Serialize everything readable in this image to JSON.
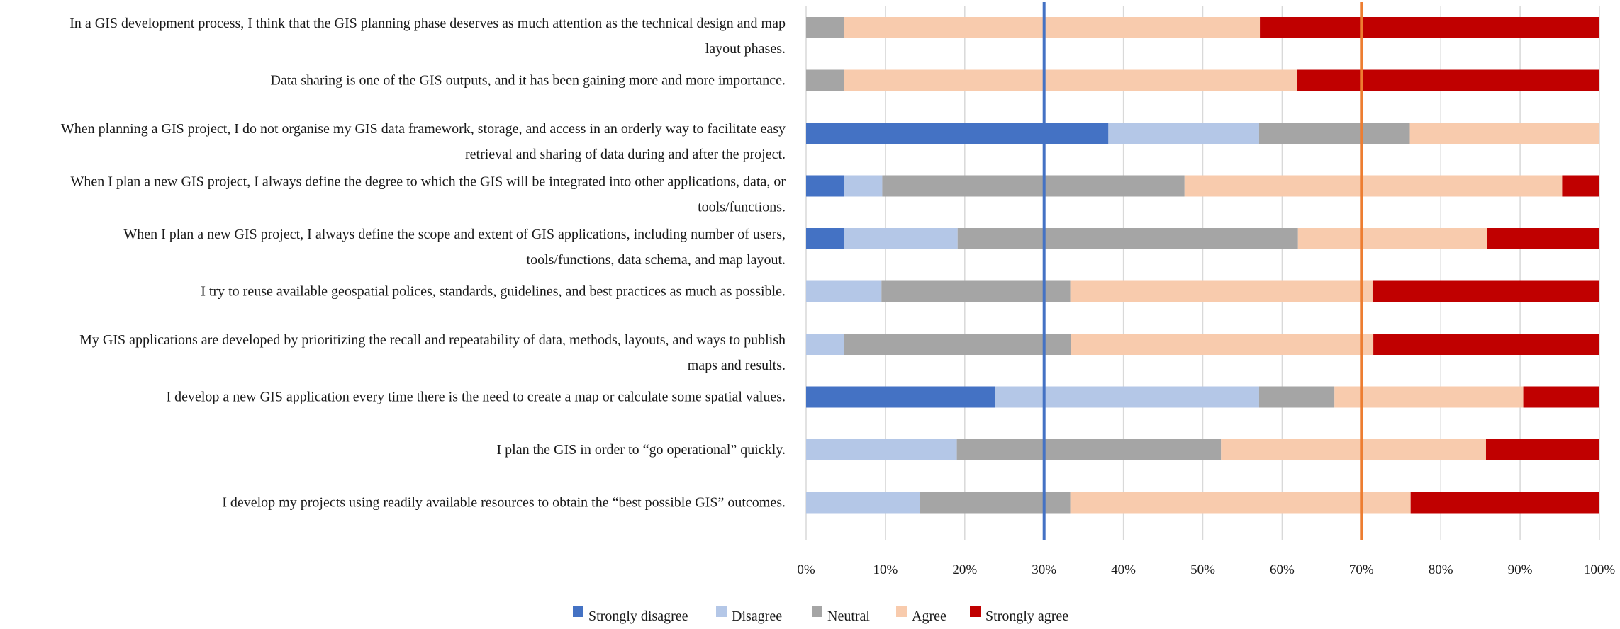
{
  "chart_data": {
    "type": "bar",
    "orientation": "horizontal",
    "stacked": true,
    "percent_stacked": true,
    "title": "",
    "xlabel": "",
    "ylabel": "",
    "xlim": [
      0,
      100
    ],
    "xticks": [
      "0%",
      "10%",
      "20%",
      "30%",
      "40%",
      "50%",
      "60%",
      "70%",
      "80%",
      "90%",
      "100%"
    ],
    "grid": true,
    "legend_position": "bottom",
    "categories": [
      [
        "In a GIS development process, I think that the GIS planning phase deserves as much attention as the technical design and map",
        "layout phases."
      ],
      [
        "Data sharing is one of the GIS outputs, and it has been gaining more and more importance."
      ],
      [
        "When planning a GIS project, I do not organise my GIS data framework, storage, and access in an orderly way to facilitate easy",
        "retrieval and sharing of data during and after the project."
      ],
      [
        "When I plan a new GIS project, I always define the degree to which the GIS will be integrated into other applications, data, or",
        "tools/functions."
      ],
      [
        "When I plan a new GIS project, I always define the scope and extent of GIS applications, including number of users,",
        "tools/functions, data schema, and map layout."
      ],
      [
        "I try to reuse available geospatial polices, standards, guidelines, and best practices as much as possible."
      ],
      [
        "My GIS applications are developed by prioritizing the recall and repeatability of data, methods, layouts, and ways to publish",
        "maps and results."
      ],
      [
        "I develop a new GIS application every time there is the need to create a map or calculate some spatial values."
      ],
      [
        "I plan the GIS in order to “go operational” quickly."
      ],
      [
        "I develop my projects using readily available resources to obtain the “best possible GIS” outcomes."
      ]
    ],
    "series": [
      {
        "name": "Strongly disagree",
        "color": "#4472c4",
        "values": [
          0,
          0,
          38.1,
          4.8,
          4.8,
          0,
          0,
          23.8,
          0,
          0
        ]
      },
      {
        "name": "Disagree",
        "color": "#b4c7e7",
        "values": [
          0,
          0,
          19.0,
          4.8,
          14.3,
          9.5,
          4.8,
          33.3,
          19.0,
          14.3
        ]
      },
      {
        "name": "Neutral",
        "color": "#a5a5a5",
        "values": [
          4.8,
          4.8,
          19.0,
          38.1,
          42.9,
          23.8,
          28.6,
          9.5,
          33.3,
          19.0
        ]
      },
      {
        "name": "Agree",
        "color": "#f8cbad",
        "values": [
          52.4,
          57.1,
          23.9,
          47.6,
          23.8,
          38.1,
          38.1,
          23.8,
          33.4,
          42.9
        ]
      },
      {
        "name": "Strongly agree",
        "color": "#c00000",
        "values": [
          42.8,
          38.1,
          0,
          4.7,
          14.2,
          28.6,
          28.5,
          9.6,
          14.3,
          23.8
        ]
      }
    ],
    "reference_lines": [
      {
        "value": 30,
        "color": "#4472c4"
      },
      {
        "value": 70,
        "color": "#ed7d31"
      }
    ]
  }
}
